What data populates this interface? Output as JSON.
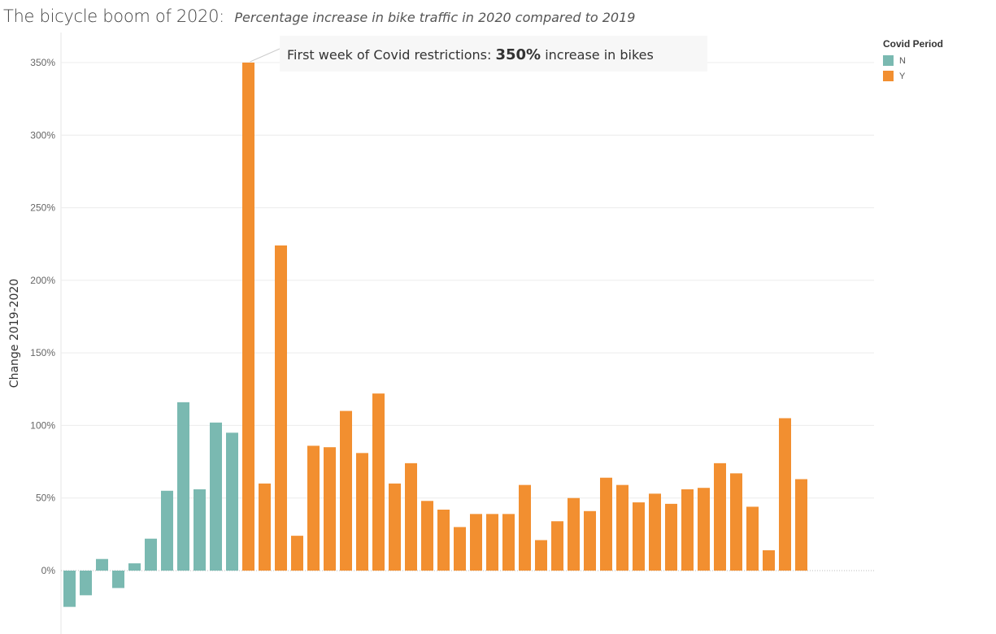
{
  "title": {
    "main": "The bicycle boom of 2020:",
    "subtitle": "Percentage increase in bike traffic in 2020 compared to 2019"
  },
  "annotation": {
    "prefix": "First week of Covid restrictions:",
    "value": "350%",
    "suffix": "increase in bikes"
  },
  "legend": {
    "title": "Covid Period",
    "items": [
      {
        "label": "N",
        "color": "#7ab9b1"
      },
      {
        "label": "Y",
        "color": "#f28f30"
      }
    ]
  },
  "chart_data": {
    "type": "bar",
    "ylabel": "Change 2019-2020",
    "ylim": [
      -0.42,
      3.5
    ],
    "yticks": [
      0,
      0.5,
      1.0,
      1.5,
      2.0,
      2.5,
      3.0,
      3.5
    ],
    "ytick_labels": [
      "0%",
      "50%",
      "100%",
      "150%",
      "200%",
      "250%",
      "300%",
      "350%"
    ],
    "grid": true,
    "legend_position": "top-right",
    "series": [
      {
        "name": "N",
        "color": "#7ab9b1",
        "values": [
          -0.25,
          -0.17,
          0.08,
          -0.12,
          0.05,
          0.22,
          0.55,
          1.16,
          0.56,
          1.02,
          0.95
        ]
      },
      {
        "name": "Y",
        "color": "#f28f30",
        "values": [
          3.5,
          0.6,
          2.24,
          0.24,
          0.86,
          0.85,
          1.1,
          0.81,
          1.22,
          0.6,
          0.74,
          0.48,
          0.42,
          0.3,
          0.39,
          0.39,
          0.39,
          0.59,
          0.21,
          0.34,
          0.5,
          0.41,
          0.64,
          0.59,
          0.47,
          0.53,
          0.46,
          0.56,
          0.57,
          0.74,
          0.67,
          0.44,
          0.14,
          1.05,
          0.63
        ]
      }
    ]
  }
}
